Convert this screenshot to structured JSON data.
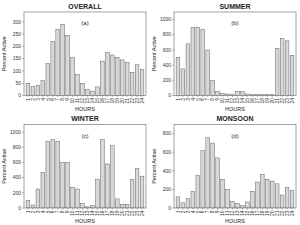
{
  "chart_data": [
    {
      "type": "bar",
      "title": "OVERALL",
      "annotations": [
        "(a)"
      ],
      "x_label": "HOURS",
      "y_label": "Percent Active",
      "categories": [
        1,
        2,
        3,
        4,
        5,
        6,
        7,
        8,
        9,
        10,
        11,
        12,
        13,
        14,
        15,
        16,
        17,
        18,
        19,
        20,
        21,
        22,
        23,
        24
      ],
      "values": [
        50,
        38,
        42,
        60,
        130,
        220,
        270,
        290,
        245,
        155,
        85,
        50,
        25,
        18,
        35,
        140,
        175,
        165,
        155,
        145,
        135,
        95,
        125,
        105
      ],
      "color": "#d8d8d8",
      "ylim": [
        0,
        340
      ],
      "yticks": [
        0,
        50,
        100,
        150,
        200,
        250,
        300
      ],
      "grid": false
    },
    {
      "type": "bar",
      "title": "SUMMER",
      "annotations": [
        "(b)"
      ],
      "x_label": "HOURS",
      "y_label": "Percent Active",
      "categories": [
        1,
        2,
        3,
        4,
        5,
        6,
        7,
        8,
        9,
        10,
        11,
        12,
        13,
        14,
        15,
        16,
        17,
        18,
        19,
        20,
        21,
        22,
        23,
        24
      ],
      "values": [
        500,
        350,
        680,
        900,
        900,
        870,
        600,
        200,
        55,
        30,
        20,
        10,
        50,
        50,
        20,
        10,
        10,
        10,
        10,
        10,
        620,
        750,
        720,
        530
      ],
      "color": "#d8d8d8",
      "ylim": [
        0,
        1100
      ],
      "yticks": [
        0,
        200,
        400,
        600,
        800,
        1000
      ],
      "grid": false
    },
    {
      "type": "bar",
      "title": "WINTER",
      "annotations": [
        "(c)"
      ],
      "x_label": "HOURS",
      "y_label": "Percent Active",
      "categories": [
        1,
        2,
        3,
        4,
        5,
        6,
        7,
        8,
        9,
        10,
        11,
        12,
        13,
        14,
        15,
        16,
        17,
        18,
        19,
        20,
        21,
        22,
        23,
        24
      ],
      "values": [
        100,
        40,
        250,
        470,
        880,
        900,
        880,
        600,
        600,
        270,
        250,
        60,
        15,
        30,
        380,
        900,
        580,
        820,
        120,
        50,
        50,
        380,
        520,
        420
      ],
      "color": "#d8d8d8",
      "ylim": [
        0,
        1100
      ],
      "yticks": [
        0,
        200,
        400,
        600,
        800,
        1000
      ],
      "grid": false
    },
    {
      "type": "bar",
      "title": "MONSOON",
      "annotations": [
        "(d)"
      ],
      "x_label": "HOURS",
      "y_label": "Percent Active",
      "categories": [
        1,
        2,
        3,
        4,
        5,
        6,
        7,
        8,
        9,
        10,
        11,
        12,
        13,
        14,
        15,
        16,
        17,
        18,
        19,
        20,
        21,
        22,
        23,
        24
      ],
      "values": [
        120,
        55,
        100,
        180,
        350,
        620,
        760,
        700,
        540,
        310,
        200,
        70,
        50,
        25,
        65,
        180,
        280,
        360,
        310,
        290,
        260,
        140,
        220,
        190
      ],
      "color": "#d8d8d8",
      "ylim": [
        0,
        900
      ],
      "yticks": [
        0,
        200,
        400,
        600,
        800
      ],
      "grid": false
    }
  ]
}
